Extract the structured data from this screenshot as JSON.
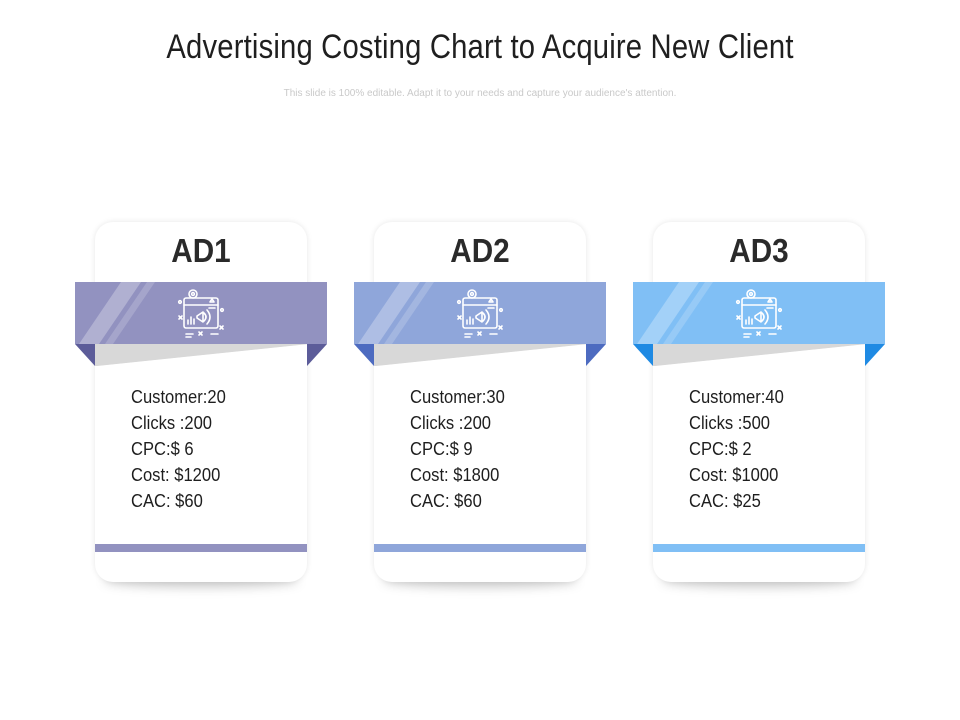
{
  "slide": {
    "title": "Advertising Costing Chart to Acquire New Client",
    "subtitle": "This slide is 100% editable. Adapt it to your needs and capture your audience's attention."
  },
  "cards": [
    {
      "heading": "AD1",
      "icon": "advertising-board-icon",
      "color": "#9292c0",
      "fold_color": "#5c5c99",
      "lines": [
        "Customer:20",
        "Clicks :200",
        "CPC:$ 6",
        "Cost: $1200",
        "CAC: $60"
      ]
    },
    {
      "heading": "AD2",
      "icon": "advertising-board-icon",
      "color": "#8fa6da",
      "fold_color": "#4d6bc0",
      "lines": [
        "Customer:30",
        "Clicks :200",
        "CPC:$ 9",
        "Cost: $1800",
        "CAC: $60"
      ]
    },
    {
      "heading": "AD3",
      "icon": "advertising-board-icon",
      "color": "#80bff5",
      "fold_color": "#1f8ae3",
      "lines": [
        "Customer:40",
        "Clicks :500",
        "CPC:$ 2",
        "Cost: $1000",
        "CAC: $25"
      ]
    }
  ]
}
